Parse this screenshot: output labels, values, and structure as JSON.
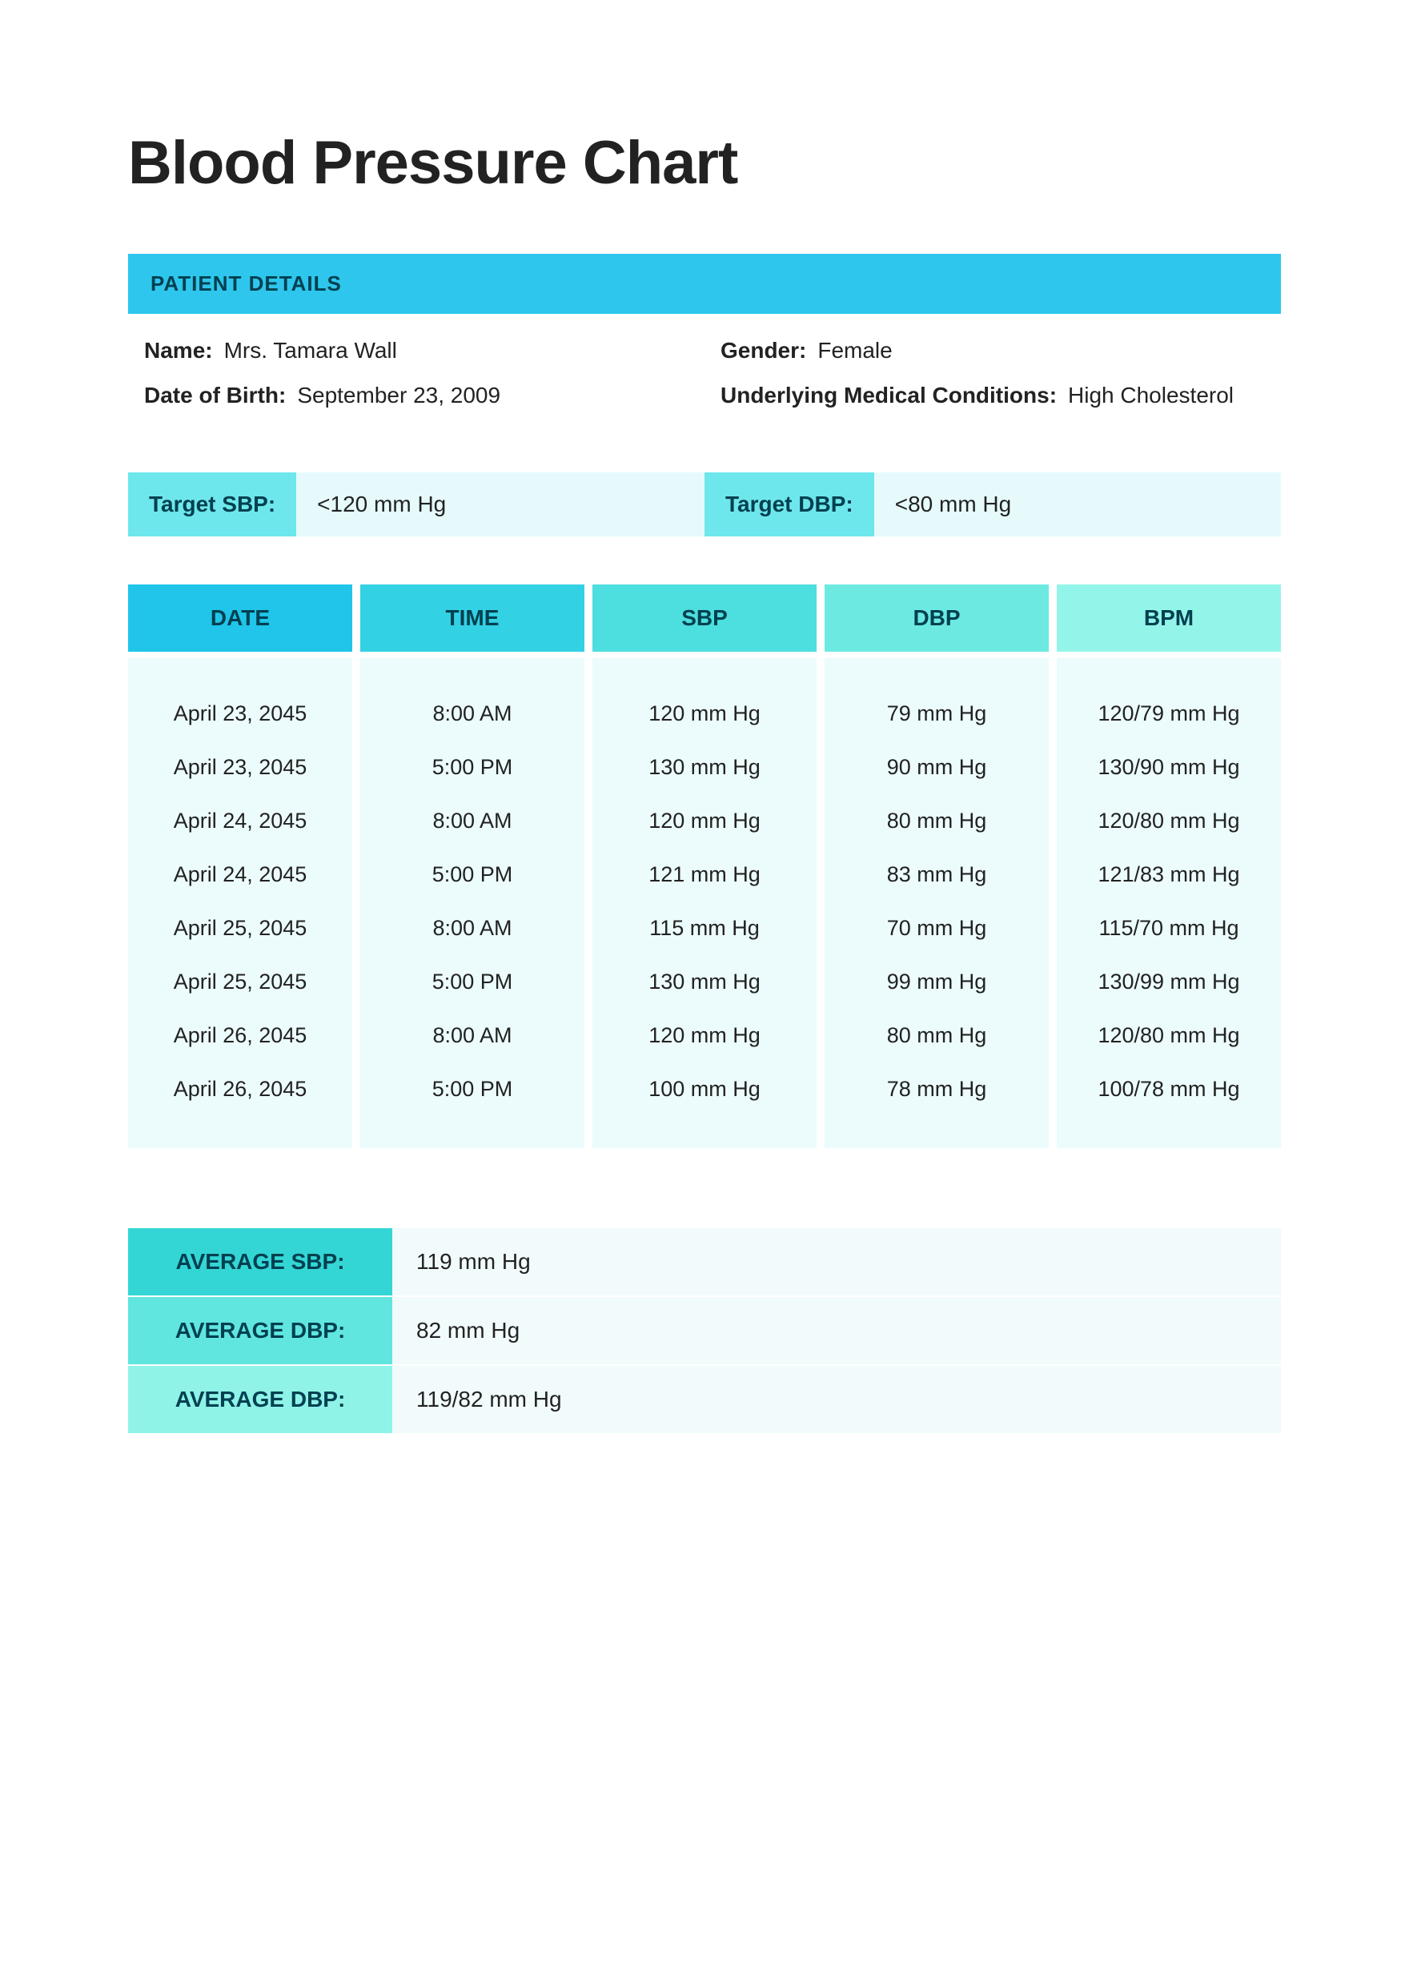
{
  "title": "Blood Pressure Chart",
  "patient_header": "PATIENT DETAILS",
  "patient": {
    "name_label": "Name:",
    "name": "Mrs. Tamara Wall",
    "gender_label": "Gender:",
    "gender": "Female",
    "dob_label": "Date of Birth:",
    "dob": "September 23, 2009",
    "cond_label": "Underlying Medical Conditions:",
    "cond": "High Cholesterol"
  },
  "targets": {
    "sbp_label": "Target SBP:",
    "sbp_value": "<120 mm Hg",
    "dbp_label": "Target DBP:",
    "dbp_value": "<80 mm Hg"
  },
  "table": {
    "headers": {
      "date": "DATE",
      "time": "TIME",
      "sbp": "SBP",
      "dbp": "DBP",
      "bpm": "BPM"
    },
    "header_colors": [
      "#20c5e9",
      "#33d1e4",
      "#4ddedf",
      "#6ceae1",
      "#93f5e9"
    ],
    "col_bg": "#ecfbfc",
    "rows": [
      {
        "date": "April 23, 2045",
        "time": "8:00 AM",
        "sbp": "120 mm Hg",
        "dbp": "79 mm Hg",
        "bpm": "120/79 mm Hg"
      },
      {
        "date": "April 23, 2045",
        "time": "5:00 PM",
        "sbp": "130 mm Hg",
        "dbp": "90 mm Hg",
        "bpm": "130/90 mm Hg"
      },
      {
        "date": "April 24, 2045",
        "time": "8:00 AM",
        "sbp": "120 mm Hg",
        "dbp": "80 mm Hg",
        "bpm": "120/80 mm Hg"
      },
      {
        "date": "April 24, 2045",
        "time": "5:00 PM",
        "sbp": "121 mm Hg",
        "dbp": "83 mm Hg",
        "bpm": "121/83 mm Hg"
      },
      {
        "date": "April 25, 2045",
        "time": "8:00 AM",
        "sbp": "115 mm Hg",
        "dbp": "70 mm Hg",
        "bpm": "115/70 mm Hg"
      },
      {
        "date": "April 25, 2045",
        "time": "5:00 PM",
        "sbp": "130 mm Hg",
        "dbp": "99 mm Hg",
        "bpm": "130/99 mm Hg"
      },
      {
        "date": "April 26, 2045",
        "time": "8:00 AM",
        "sbp": "120 mm Hg",
        "dbp": "80 mm Hg",
        "bpm": "120/80 mm Hg"
      },
      {
        "date": "April 26, 2045",
        "time": "5:00 PM",
        "sbp": "100 mm Hg",
        "dbp": "78 mm Hg",
        "bpm": "100/78 mm Hg"
      }
    ]
  },
  "averages": [
    {
      "label": "AVERAGE SBP:",
      "value": "119 mm Hg",
      "color": "#34d6d5"
    },
    {
      "label": "AVERAGE DBP:",
      "value": "82 mm Hg",
      "color": "#60e6de"
    },
    {
      "label": "AVERAGE DBP:",
      "value": "119/82 mm Hg",
      "color": "#8ff3e8"
    }
  ],
  "colors": {
    "header_bar": "#2ec6ec",
    "target_label_bg": "#6ee7ec",
    "target_row_bg": "#e6fafc",
    "avg_row_bg": "#f1fbfc",
    "text_dark": "#004050"
  }
}
